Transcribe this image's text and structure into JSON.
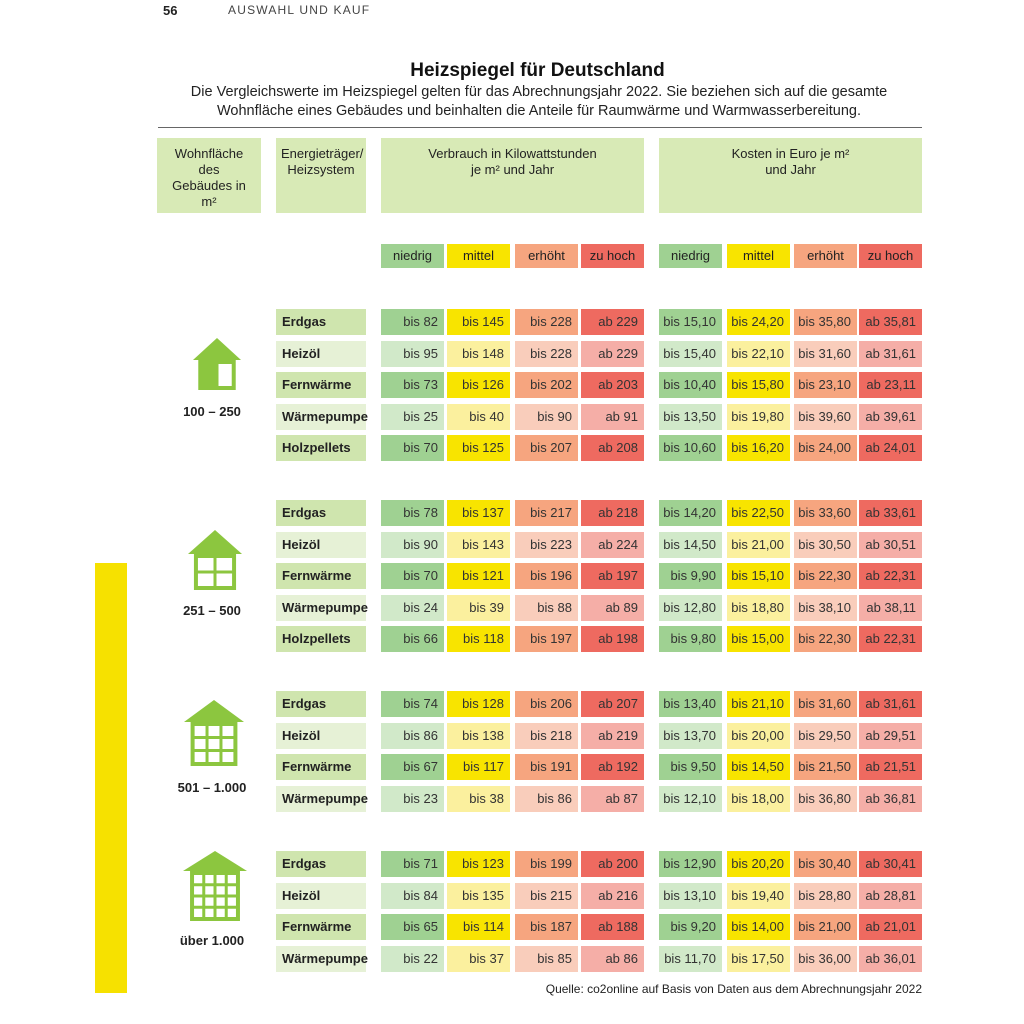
{
  "page_number": "56",
  "section": "AUSWAHL UND KAUF",
  "title": "Heizspiegel für Deutschland",
  "subtitle": "Die Vergleichswerte im Heizspiegel gelten für das Abrechnungsjahr 2022. Sie beziehen sich auf die gesamte Wohnfläche eines Gebäudes und beinhalten die Anteile für Raumwärme und Warmwasserbereitung.",
  "headers": {
    "area": "Wohnfläche des Gebäudes in m²",
    "energy": "Energieträger/ Heizsystem",
    "consumption": "Verbrauch in Kilowattstunden je m² und Jahr",
    "costs": "Kosten in Euro je m² und Jahr"
  },
  "levels": [
    "niedrig",
    "mittel",
    "erhöht",
    "zu hoch"
  ],
  "colors": {
    "niedrig": "#9fd192",
    "mittel": "#f8e400",
    "erhoeht": "#f6a57f",
    "zu_hoch": "#ee6a60",
    "header_bg": "#d8eab6",
    "icon": "#8cc63f",
    "side_bar": "#f6e100"
  },
  "groups": [
    {
      "range": "100 – 250",
      "icon": "house-small-icon",
      "rows": [
        {
          "energy": "Erdgas",
          "consumption": [
            "bis 82",
            "bis 145",
            "bis 228",
            "ab 229"
          ],
          "costs": [
            "bis 15,10",
            "bis 24,20",
            "bis 35,80",
            "ab 35,81"
          ]
        },
        {
          "energy": "Heizöl",
          "consumption": [
            "bis 95",
            "bis 148",
            "bis 228",
            "ab 229"
          ],
          "costs": [
            "bis 15,40",
            "bis 22,10",
            "bis 31,60",
            "ab 31,61"
          ]
        },
        {
          "energy": "Fernwärme",
          "consumption": [
            "bis 73",
            "bis 126",
            "bis 202",
            "ab 203"
          ],
          "costs": [
            "bis 10,40",
            "bis 15,80",
            "bis 23,10",
            "ab 23,11"
          ]
        },
        {
          "energy": "Wärmepumpe",
          "consumption": [
            "bis 25",
            "bis 40",
            "bis 90",
            "ab 91"
          ],
          "costs": [
            "bis 13,50",
            "bis 19,80",
            "bis 39,60",
            "ab 39,61"
          ]
        },
        {
          "energy": "Holzpellets",
          "consumption": [
            "bis 70",
            "bis 125",
            "bis 207",
            "ab 208"
          ],
          "costs": [
            "bis 10,60",
            "bis 16,20",
            "bis 24,00",
            "ab 24,01"
          ]
        }
      ]
    },
    {
      "range": "251 – 500",
      "icon": "house-medium-icon",
      "rows": [
        {
          "energy": "Erdgas",
          "consumption": [
            "bis 78",
            "bis 137",
            "bis 217",
            "ab 218"
          ],
          "costs": [
            "bis 14,20",
            "bis 22,50",
            "bis 33,60",
            "ab 33,61"
          ]
        },
        {
          "energy": "Heizöl",
          "consumption": [
            "bis 90",
            "bis 143",
            "bis 223",
            "ab 224"
          ],
          "costs": [
            "bis 14,50",
            "bis 21,00",
            "bis 30,50",
            "ab 30,51"
          ]
        },
        {
          "energy": "Fernwärme",
          "consumption": [
            "bis 70",
            "bis 121",
            "bis 196",
            "ab 197"
          ],
          "costs": [
            "bis 9,90",
            "bis 15,10",
            "bis 22,30",
            "ab 22,31"
          ]
        },
        {
          "energy": "Wärmepumpe",
          "consumption": [
            "bis 24",
            "bis 39",
            "bis 88",
            "ab 89"
          ],
          "costs": [
            "bis 12,80",
            "bis 18,80",
            "bis 38,10",
            "ab 38,11"
          ]
        },
        {
          "energy": "Holzpellets",
          "consumption": [
            "bis 66",
            "bis 118",
            "bis 197",
            "ab 198"
          ],
          "costs": [
            "bis 9,80",
            "bis 15,00",
            "bis 22,30",
            "ab 22,31"
          ]
        }
      ]
    },
    {
      "range": "501 – 1.000",
      "icon": "apartment-building-icon",
      "rows": [
        {
          "energy": "Erdgas",
          "consumption": [
            "bis 74",
            "bis 128",
            "bis 206",
            "ab 207"
          ],
          "costs": [
            "bis 13,40",
            "bis 21,10",
            "bis 31,60",
            "ab 31,61"
          ]
        },
        {
          "energy": "Heizöl",
          "consumption": [
            "bis 86",
            "bis 138",
            "bis 218",
            "ab 219"
          ],
          "costs": [
            "bis 13,70",
            "bis 20,00",
            "bis 29,50",
            "ab 29,51"
          ]
        },
        {
          "energy": "Fernwärme",
          "consumption": [
            "bis 67",
            "bis 117",
            "bis 191",
            "ab 192"
          ],
          "costs": [
            "bis 9,50",
            "bis 14,50",
            "bis 21,50",
            "ab 21,51"
          ]
        },
        {
          "energy": "Wärmepumpe",
          "consumption": [
            "bis 23",
            "bis 38",
            "bis 86",
            "ab 87"
          ],
          "costs": [
            "bis 12,10",
            "bis 18,00",
            "bis 36,80",
            "ab 36,81"
          ]
        }
      ]
    },
    {
      "range": "über 1.000",
      "icon": "large-apartment-building-icon",
      "rows": [
        {
          "energy": "Erdgas",
          "consumption": [
            "bis 71",
            "bis 123",
            "bis 199",
            "ab 200"
          ],
          "costs": [
            "bis 12,90",
            "bis 20,20",
            "bis 30,40",
            "ab 30,41"
          ]
        },
        {
          "energy": "Heizöl",
          "consumption": [
            "bis 84",
            "bis 135",
            "bis 215",
            "ab 216"
          ],
          "costs": [
            "bis 13,10",
            "bis 19,40",
            "bis 28,80",
            "ab 28,81"
          ]
        },
        {
          "energy": "Fernwärme",
          "consumption": [
            "bis 65",
            "bis 114",
            "bis 187",
            "ab 188"
          ],
          "costs": [
            "bis 9,20",
            "bis 14,00",
            "bis 21,00",
            "ab 21,01"
          ]
        },
        {
          "energy": "Wärmepumpe",
          "consumption": [
            "bis 22",
            "bis 37",
            "bis 85",
            "ab 86"
          ],
          "costs": [
            "bis 11,70",
            "bis 17,50",
            "bis 36,00",
            "ab 36,01"
          ]
        }
      ]
    }
  ],
  "source": "Quelle: co2online auf Basis von Daten aus dem Abrechnungsjahr 2022"
}
